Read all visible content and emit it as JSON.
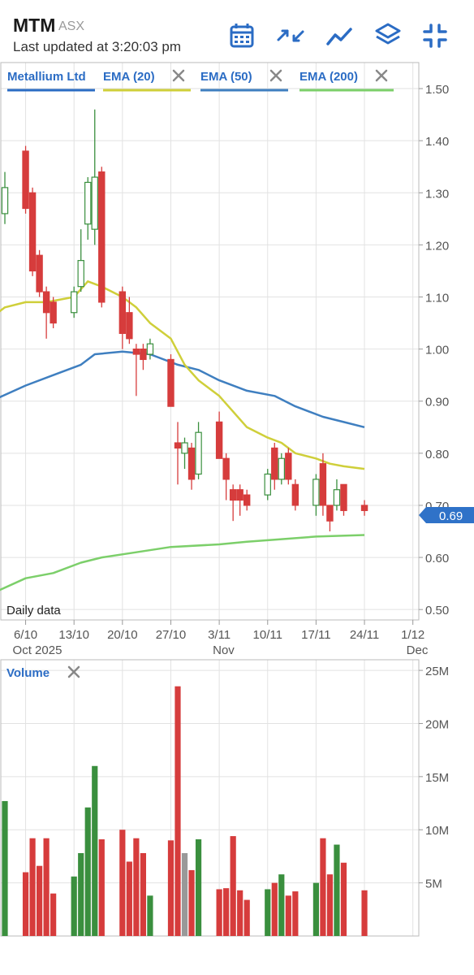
{
  "header": {
    "ticker": "MTM",
    "exchange": "ASX",
    "updated": "Last updated at 3:20:03 pm",
    "toolbar_icons": [
      "calendar-icon",
      "compress-arrows-icon",
      "line-chart-icon",
      "layers-icon",
      "minimize-icon"
    ]
  },
  "colors": {
    "up": "#3a8f3e",
    "down": "#d63c3c",
    "neutral": "#999999",
    "ema20": "#cfcf3a",
    "ema50": "#3f7fc0",
    "ema200": "#7ccf6a",
    "accent": "#2b6cc4",
    "last_price_tag": "#2f72c8"
  },
  "chart_data": [
    {
      "type": "candlestick",
      "legend": [
        {
          "label": "Metallium Ltd",
          "color": "#2b6cc4",
          "removable": false
        },
        {
          "label": "EMA (20)",
          "color": "#cfcf3a",
          "removable": true
        },
        {
          "label": "EMA (50)",
          "color": "#3f7fc0",
          "removable": true
        },
        {
          "label": "EMA (200)",
          "color": "#7ccf6a",
          "removable": true
        }
      ],
      "annotation": "Daily data",
      "last_price": "0.69",
      "ylim": [
        0.48,
        1.55
      ],
      "y_ticks": [
        "1.50",
        "1.40",
        "1.30",
        "1.20",
        "1.10",
        "1.00",
        "0.90",
        "0.80",
        "0.70",
        "0.60",
        "0.50"
      ],
      "x_ticks": [
        {
          "label": "6/10",
          "sub": "Oct 2025",
          "day": 3
        },
        {
          "label": "13/10",
          "sub": "",
          "day": 10
        },
        {
          "label": "20/10",
          "sub": "",
          "day": 17
        },
        {
          "label": "27/10",
          "sub": "",
          "day": 24
        },
        {
          "label": "3/11",
          "sub": "Nov",
          "day": 31
        },
        {
          "label": "10/11",
          "sub": "",
          "day": 38
        },
        {
          "label": "17/11",
          "sub": "",
          "day": 45
        },
        {
          "label": "24/11",
          "sub": "",
          "day": 52
        },
        {
          "label": "1/12",
          "sub": "Dec",
          "day": 59
        }
      ],
      "candles": [
        {
          "date": "2025-10-03",
          "o": 1.26,
          "h": 1.34,
          "l": 1.24,
          "c": 1.31
        },
        {
          "date": "2025-10-06",
          "o": 1.38,
          "h": 1.39,
          "l": 1.26,
          "c": 1.27
        },
        {
          "date": "2025-10-07",
          "o": 1.3,
          "h": 1.31,
          "l": 1.14,
          "c": 1.15
        },
        {
          "date": "2025-10-08",
          "o": 1.18,
          "h": 1.19,
          "l": 1.1,
          "c": 1.11
        },
        {
          "date": "2025-10-09",
          "o": 1.11,
          "h": 1.12,
          "l": 1.02,
          "c": 1.07
        },
        {
          "date": "2025-10-10",
          "o": 1.09,
          "h": 1.1,
          "l": 1.04,
          "c": 1.05
        },
        {
          "date": "2025-10-13",
          "o": 1.07,
          "h": 1.12,
          "l": 1.06,
          "c": 1.11
        },
        {
          "date": "2025-10-14",
          "o": 1.12,
          "h": 1.23,
          "l": 1.11,
          "c": 1.17
        },
        {
          "date": "2025-10-15",
          "o": 1.24,
          "h": 1.33,
          "l": 1.21,
          "c": 1.32
        },
        {
          "date": "2025-10-16",
          "o": 1.23,
          "h": 1.46,
          "l": 1.2,
          "c": 1.33
        },
        {
          "date": "2025-10-17",
          "o": 1.34,
          "h": 1.35,
          "l": 1.08,
          "c": 1.09
        },
        {
          "date": "2025-10-20",
          "o": 1.11,
          "h": 1.12,
          "l": 1.0,
          "c": 1.03
        },
        {
          "date": "2025-10-21",
          "o": 1.07,
          "h": 1.1,
          "l": 1.01,
          "c": 1.02
        },
        {
          "date": "2025-10-22",
          "o": 1.0,
          "h": 1.01,
          "l": 0.91,
          "c": 0.99
        },
        {
          "date": "2025-10-23",
          "o": 1.0,
          "h": 1.01,
          "l": 0.96,
          "c": 0.98
        },
        {
          "date": "2025-10-24",
          "o": 0.99,
          "h": 1.02,
          "l": 0.98,
          "c": 1.01
        },
        {
          "date": "2025-10-27",
          "o": 0.98,
          "h": 0.99,
          "l": 0.89,
          "c": 0.89
        },
        {
          "date": "2025-10-28",
          "o": 0.82,
          "h": 0.86,
          "l": 0.74,
          "c": 0.81
        },
        {
          "date": "2025-10-29",
          "o": 0.8,
          "h": 0.83,
          "l": 0.77,
          "c": 0.82
        },
        {
          "date": "2025-10-30",
          "o": 0.81,
          "h": 0.82,
          "l": 0.73,
          "c": 0.75
        },
        {
          "date": "2025-10-31",
          "o": 0.76,
          "h": 0.86,
          "l": 0.75,
          "c": 0.84
        },
        {
          "date": "2025-11-03",
          "o": 0.86,
          "h": 0.88,
          "l": 0.79,
          "c": 0.79
        },
        {
          "date": "2025-11-04",
          "o": 0.79,
          "h": 0.8,
          "l": 0.71,
          "c": 0.75
        },
        {
          "date": "2025-11-05",
          "o": 0.73,
          "h": 0.74,
          "l": 0.67,
          "c": 0.71
        },
        {
          "date": "2025-11-06",
          "o": 0.73,
          "h": 0.74,
          "l": 0.68,
          "c": 0.71
        },
        {
          "date": "2025-11-07",
          "o": 0.72,
          "h": 0.73,
          "l": 0.69,
          "c": 0.7
        },
        {
          "date": "2025-11-10",
          "o": 0.72,
          "h": 0.77,
          "l": 0.71,
          "c": 0.76
        },
        {
          "date": "2025-11-11",
          "o": 0.81,
          "h": 0.82,
          "l": 0.73,
          "c": 0.75
        },
        {
          "date": "2025-11-12",
          "o": 0.75,
          "h": 0.8,
          "l": 0.74,
          "c": 0.79
        },
        {
          "date": "2025-11-13",
          "o": 0.8,
          "h": 0.81,
          "l": 0.74,
          "c": 0.75
        },
        {
          "date": "2025-11-14",
          "o": 0.74,
          "h": 0.75,
          "l": 0.69,
          "c": 0.7
        },
        {
          "date": "2025-11-17",
          "o": 0.7,
          "h": 0.76,
          "l": 0.68,
          "c": 0.75
        },
        {
          "date": "2025-11-18",
          "o": 0.78,
          "h": 0.8,
          "l": 0.68,
          "c": 0.7
        },
        {
          "date": "2025-11-19",
          "o": 0.7,
          "h": 0.7,
          "l": 0.65,
          "c": 0.67
        },
        {
          "date": "2025-11-20",
          "o": 0.7,
          "h": 0.75,
          "l": 0.69,
          "c": 0.73
        },
        {
          "date": "2025-11-21",
          "o": 0.74,
          "h": 0.74,
          "l": 0.68,
          "c": 0.69
        },
        {
          "date": "2025-11-24",
          "o": 0.7,
          "h": 0.71,
          "l": 0.68,
          "c": 0.69
        }
      ],
      "ema20": [
        [
          "2025-10-01",
          1.06
        ],
        [
          "2025-10-03",
          1.08
        ],
        [
          "2025-10-06",
          1.09
        ],
        [
          "2025-10-09",
          1.09
        ],
        [
          "2025-10-13",
          1.1
        ],
        [
          "2025-10-15",
          1.13
        ],
        [
          "2025-10-17",
          1.12
        ],
        [
          "2025-10-20",
          1.1
        ],
        [
          "2025-10-22",
          1.08
        ],
        [
          "2025-10-24",
          1.05
        ],
        [
          "2025-10-27",
          1.02
        ],
        [
          "2025-10-29",
          0.97
        ],
        [
          "2025-10-31",
          0.94
        ],
        [
          "2025-11-03",
          0.91
        ],
        [
          "2025-11-05",
          0.88
        ],
        [
          "2025-11-07",
          0.85
        ],
        [
          "2025-11-10",
          0.83
        ],
        [
          "2025-11-12",
          0.82
        ],
        [
          "2025-11-14",
          0.8
        ],
        [
          "2025-11-17",
          0.79
        ],
        [
          "2025-11-19",
          0.78
        ],
        [
          "2025-11-21",
          0.775
        ],
        [
          "2025-11-24",
          0.77
        ]
      ],
      "ema50": [
        [
          "2025-10-01",
          0.9
        ],
        [
          "2025-10-06",
          0.93
        ],
        [
          "2025-10-10",
          0.95
        ],
        [
          "2025-10-14",
          0.97
        ],
        [
          "2025-10-16",
          0.99
        ],
        [
          "2025-10-20",
          0.995
        ],
        [
          "2025-10-24",
          0.99
        ],
        [
          "2025-10-28",
          0.97
        ],
        [
          "2025-10-31",
          0.96
        ],
        [
          "2025-11-03",
          0.94
        ],
        [
          "2025-11-07",
          0.92
        ],
        [
          "2025-11-11",
          0.91
        ],
        [
          "2025-11-14",
          0.89
        ],
        [
          "2025-11-18",
          0.87
        ],
        [
          "2025-11-21",
          0.86
        ],
        [
          "2025-11-24",
          0.85
        ]
      ],
      "ema200": [
        [
          "2025-10-01",
          0.53
        ],
        [
          "2025-10-06",
          0.56
        ],
        [
          "2025-10-10",
          0.57
        ],
        [
          "2025-10-14",
          0.59
        ],
        [
          "2025-10-17",
          0.6
        ],
        [
          "2025-10-22",
          0.61
        ],
        [
          "2025-10-27",
          0.62
        ],
        [
          "2025-11-03",
          0.625
        ],
        [
          "2025-11-07",
          0.63
        ],
        [
          "2025-11-12",
          0.635
        ],
        [
          "2025-11-17",
          0.64
        ],
        [
          "2025-11-24",
          0.643
        ]
      ]
    },
    {
      "type": "bar",
      "title": "Volume",
      "removable": true,
      "ylim": [
        0,
        26000000
      ],
      "y_ticks": [
        "25M",
        "20M",
        "15M",
        "10M",
        "5M"
      ],
      "bars": [
        {
          "date": "2025-10-03",
          "v": 12700000,
          "dir": "up"
        },
        {
          "date": "2025-10-06",
          "v": 6000000,
          "dir": "down"
        },
        {
          "date": "2025-10-07",
          "v": 9200000,
          "dir": "down"
        },
        {
          "date": "2025-10-08",
          "v": 6600000,
          "dir": "down"
        },
        {
          "date": "2025-10-09",
          "v": 9200000,
          "dir": "down"
        },
        {
          "date": "2025-10-10",
          "v": 4000000,
          "dir": "down"
        },
        {
          "date": "2025-10-13",
          "v": 5600000,
          "dir": "up"
        },
        {
          "date": "2025-10-14",
          "v": 7800000,
          "dir": "up"
        },
        {
          "date": "2025-10-15",
          "v": 12100000,
          "dir": "up"
        },
        {
          "date": "2025-10-16",
          "v": 16000000,
          "dir": "up"
        },
        {
          "date": "2025-10-17",
          "v": 9100000,
          "dir": "down"
        },
        {
          "date": "2025-10-20",
          "v": 10000000,
          "dir": "down"
        },
        {
          "date": "2025-10-21",
          "v": 7000000,
          "dir": "down"
        },
        {
          "date": "2025-10-22",
          "v": 9200000,
          "dir": "down"
        },
        {
          "date": "2025-10-23",
          "v": 7800000,
          "dir": "down"
        },
        {
          "date": "2025-10-24",
          "v": 3800000,
          "dir": "up"
        },
        {
          "date": "2025-10-27",
          "v": 9000000,
          "dir": "down"
        },
        {
          "date": "2025-10-28",
          "v": 23500000,
          "dir": "down"
        },
        {
          "date": "2025-10-29",
          "v": 7800000,
          "dir": "neutral"
        },
        {
          "date": "2025-10-30",
          "v": 6200000,
          "dir": "down"
        },
        {
          "date": "2025-10-31",
          "v": 9100000,
          "dir": "up"
        },
        {
          "date": "2025-11-03",
          "v": 4400000,
          "dir": "down"
        },
        {
          "date": "2025-11-04",
          "v": 4500000,
          "dir": "down"
        },
        {
          "date": "2025-11-05",
          "v": 9400000,
          "dir": "down"
        },
        {
          "date": "2025-11-06",
          "v": 4300000,
          "dir": "down"
        },
        {
          "date": "2025-11-07",
          "v": 3400000,
          "dir": "down"
        },
        {
          "date": "2025-11-10",
          "v": 4400000,
          "dir": "up"
        },
        {
          "date": "2025-11-11",
          "v": 5000000,
          "dir": "down"
        },
        {
          "date": "2025-11-12",
          "v": 5800000,
          "dir": "up"
        },
        {
          "date": "2025-11-13",
          "v": 3800000,
          "dir": "down"
        },
        {
          "date": "2025-11-14",
          "v": 4200000,
          "dir": "down"
        },
        {
          "date": "2025-11-17",
          "v": 5000000,
          "dir": "up"
        },
        {
          "date": "2025-11-18",
          "v": 9200000,
          "dir": "down"
        },
        {
          "date": "2025-11-19",
          "v": 5800000,
          "dir": "down"
        },
        {
          "date": "2025-11-20",
          "v": 8600000,
          "dir": "up"
        },
        {
          "date": "2025-11-21",
          "v": 6900000,
          "dir": "down"
        },
        {
          "date": "2025-11-24",
          "v": 4300000,
          "dir": "down"
        }
      ]
    }
  ]
}
